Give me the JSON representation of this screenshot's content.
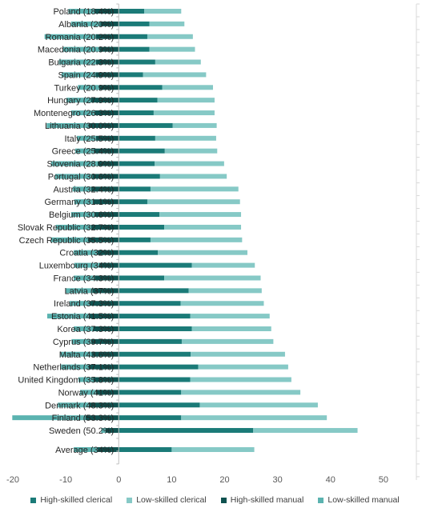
{
  "chart_data": {
    "type": "bar",
    "orientation": "horizontal",
    "stacked": true,
    "xlim": [
      -20,
      55
    ],
    "xticks": [
      -20,
      -10,
      0,
      10,
      20,
      30,
      40,
      50
    ],
    "grid": false,
    "legend_position": "bottom",
    "categories": [
      "Poland (18.4%)",
      "Albania (20%)",
      "Romania (20.2%)",
      "Macedonia (20.9%)",
      "Bulgaria (22.3%)",
      "Spain (24.9%)",
      "Turkey (20.9%)",
      "Hungary (27.9%)",
      "Montenegro (26.3%)",
      "Lithuania (30.0%)",
      "Italy (25.5%)",
      "Greece (25.4%)",
      "Slovenia (28.9%)",
      "Portugal (30.6%)",
      "Austria (32.4%)",
      "Germany (31.1%)",
      "Belgium (30.6%)",
      "Slovak Republic (32.7%)",
      "Czech Republic (35.5%)",
      "Croatia (32%)",
      "Luxembourg (34%)",
      "France (34.3%)",
      "Latvia (37%)",
      "Ireland (37.3%)",
      "Estonia (41.5%)",
      "Korea (37.3%)",
      "Cyprus (39.7%)",
      "Malta (43.6%)",
      "Netherlands (37.1%)",
      "United Kingdom (35.8%)",
      "Norway (41%)",
      "Denmark (48.3%)",
      "Finland (53.3%)",
      "Sweden (50.2%)",
      "Average (34%)"
    ],
    "series": [
      {
        "name": "High-skilled clerical",
        "color": "#1b7b78",
        "values": [
          4.8,
          5.8,
          5.4,
          5.8,
          6.9,
          4.6,
          8.2,
          7.3,
          6.6,
          10.2,
          6.9,
          8.7,
          6.8,
          7.8,
          6.0,
          5.4,
          7.7,
          8.6,
          6.0,
          7.4,
          13.8,
          8.6,
          13.2,
          11.7,
          13.5,
          13.8,
          11.9,
          13.6,
          15.0,
          13.5,
          11.8,
          15.3,
          11.8,
          25.4,
          10.0
        ]
      },
      {
        "name": "Low-skilled clerical",
        "color": "#86c9c6",
        "values": [
          7.0,
          6.6,
          8.6,
          8.6,
          8.6,
          11.9,
          9.6,
          10.8,
          11.5,
          8.3,
          11.5,
          9.9,
          13.1,
          12.6,
          16.6,
          17.5,
          15.4,
          14.5,
          17.3,
          16.9,
          11.9,
          18.2,
          13.8,
          15.7,
          15.0,
          15.0,
          17.3,
          17.8,
          17.0,
          19.1,
          22.5,
          22.3,
          27.5,
          19.7,
          15.6
        ]
      },
      {
        "name": "High-skilled manual",
        "color": "#0f5250",
        "values": [
          -4.5,
          -3.5,
          -4.3,
          -3.6,
          -4.3,
          -4.4,
          -3.7,
          -5.3,
          -4.5,
          -5.7,
          -4.3,
          -4.7,
          -4.0,
          -5.0,
          -5.2,
          -4.8,
          -4.5,
          -5.2,
          -5.8,
          -4.0,
          -3.7,
          -4.5,
          -5.0,
          -5.5,
          -5.5,
          -4.8,
          -5.2,
          -5.1,
          -5.7,
          -4.8,
          -4.3,
          -5.5,
          -6.3,
          -2.5,
          -4.0
        ]
      },
      {
        "name": "Low-skilled manual",
        "color": "#5bb3b0",
        "values": [
          -5.0,
          -5.5,
          -9.7,
          -6.9,
          -7.0,
          -6.4,
          -4.0,
          -4.6,
          -4.5,
          -7.9,
          -3.6,
          -3.5,
          -8.8,
          -7.0,
          -3.5,
          -3.6,
          -4.5,
          -6.7,
          -7.0,
          -4.5,
          -4.7,
          -4.0,
          -5.0,
          -3.8,
          -8.0,
          -3.7,
          -3.7,
          -6.0,
          -5.2,
          -2.8,
          -3.0,
          -6.0,
          -13.8,
          -0.8,
          -4.5
        ]
      }
    ]
  }
}
